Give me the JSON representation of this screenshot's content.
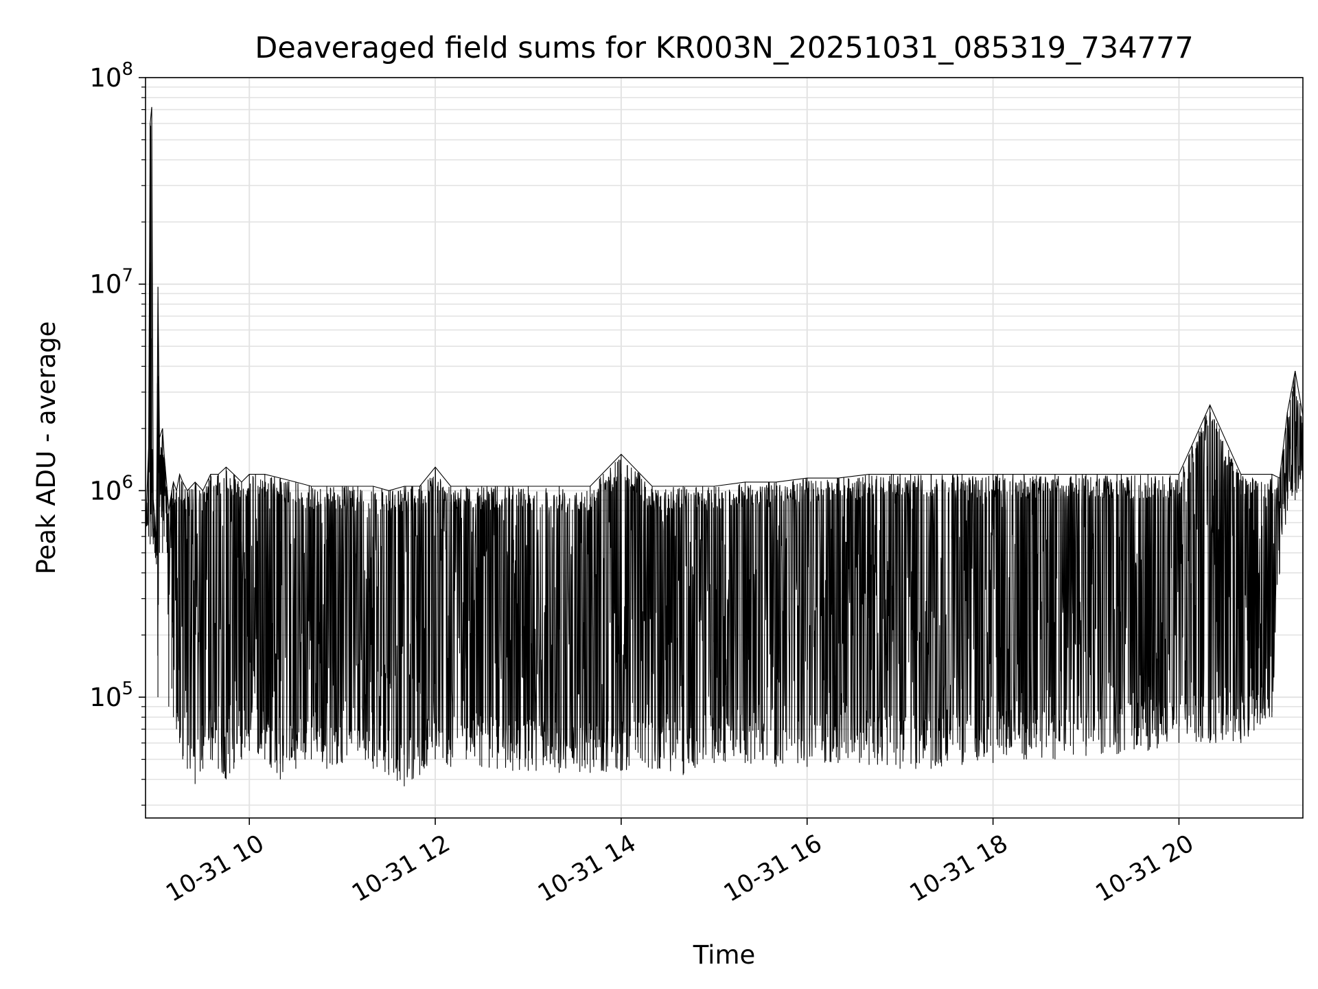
{
  "chart_data": {
    "type": "line",
    "title": "Deaveraged field sums for KR003N_20251031_085319_734777",
    "xlabel": "Time",
    "ylabel": "Peak ADU - average",
    "yscale": "log",
    "ylim": [
      26000,
      100000000
    ],
    "xlim": [
      "2025-10-31 08:53",
      "2025-10-31 21:20"
    ],
    "grid": true,
    "legend": "none",
    "line_color": "#000000",
    "xticks": [
      {
        "value": "2025-10-31 10:00",
        "label": "10-31 10"
      },
      {
        "value": "2025-10-31 12:00",
        "label": "10-31 12"
      },
      {
        "value": "2025-10-31 14:00",
        "label": "10-31 14"
      },
      {
        "value": "2025-10-31 16:00",
        "label": "10-31 16"
      },
      {
        "value": "2025-10-31 18:00",
        "label": "10-31 18"
      },
      {
        "value": "2025-10-31 20:00",
        "label": "10-31 20"
      }
    ],
    "yticks": [
      {
        "value": 100000,
        "base": "10",
        "exp": "5"
      },
      {
        "value": 1000000,
        "base": "10",
        "exp": "6"
      },
      {
        "value": 10000000,
        "base": "10",
        "exp": "7"
      },
      {
        "value": 100000000,
        "base": "10",
        "exp": "8"
      }
    ],
    "series": [
      {
        "x": [
          "2025-10-31 08:53",
          "2025-10-31 08:55",
          "2025-10-31 08:56",
          "2025-10-31 08:57",
          "2025-10-31 08:58",
          "2025-10-31 08:59",
          "2025-10-31 09:00",
          "2025-10-31 09:01",
          "2025-10-31 09:02",
          "2025-10-31 09:04",
          "2025-10-31 09:05",
          "2025-10-31 09:07",
          "2025-10-31 09:08",
          "2025-10-31 09:09",
          "2025-10-31 09:10",
          "2025-10-31 09:11",
          "2025-10-31 09:13",
          "2025-10-31 09:15",
          "2025-10-31 09:17",
          "2025-10-31 09:20",
          "2025-10-31 09:25",
          "2025-10-31 09:30",
          "2025-10-31 09:35",
          "2025-10-31 09:40",
          "2025-10-31 09:45",
          "2025-10-31 09:50",
          "2025-10-31 09:55",
          "2025-10-31 10:00",
          "2025-10-31 10:10",
          "2025-10-31 10:20",
          "2025-10-31 10:30",
          "2025-10-31 10:40",
          "2025-10-31 10:50",
          "2025-10-31 11:00",
          "2025-10-31 11:10",
          "2025-10-31 11:20",
          "2025-10-31 11:30",
          "2025-10-31 11:40",
          "2025-10-31 11:45",
          "2025-10-31 11:50",
          "2025-10-31 12:00",
          "2025-10-31 12:10",
          "2025-10-31 12:20",
          "2025-10-31 12:30",
          "2025-10-31 12:40",
          "2025-10-31 12:50",
          "2025-10-31 13:00",
          "2025-10-31 13:20",
          "2025-10-31 13:40",
          "2025-10-31 14:00",
          "2025-10-31 14:20",
          "2025-10-31 14:40",
          "2025-10-31 15:00",
          "2025-10-31 15:20",
          "2025-10-31 15:40",
          "2025-10-31 16:00",
          "2025-10-31 16:20",
          "2025-10-31 16:40",
          "2025-10-31 17:00",
          "2025-10-31 17:20",
          "2025-10-31 17:40",
          "2025-10-31 18:00",
          "2025-10-31 18:20",
          "2025-10-31 18:40",
          "2025-10-31 19:00",
          "2025-10-31 19:20",
          "2025-10-31 19:40",
          "2025-10-31 20:00",
          "2025-10-31 20:20",
          "2025-10-31 20:40",
          "2025-10-31 21:00",
          "2025-10-31 21:05",
          "2025-10-31 21:10",
          "2025-10-31 21:15",
          "2025-10-31 21:20"
        ],
        "peak": [
          650000,
          1600000,
          60000000,
          72000000,
          900000,
          750000,
          550000,
          9700000,
          1800000,
          2000000,
          1500000,
          1000000,
          800000,
          900000,
          1000000,
          1100000,
          1000000,
          1200000,
          1100000,
          1000000,
          1100000,
          1000000,
          1200000,
          1200000,
          1300000,
          1200000,
          1100000,
          1200000,
          1200000,
          1150000,
          1100000,
          1050000,
          1050000,
          1050000,
          1050000,
          1050000,
          1000000,
          1050000,
          1050000,
          1050000,
          1300000,
          1050000,
          1050000,
          1050000,
          1050000,
          1050000,
          1050000,
          1050000,
          1050000,
          1500000,
          1050000,
          1050000,
          1050000,
          1100000,
          1100000,
          1150000,
          1150000,
          1200000,
          1200000,
          1200000,
          1200000,
          1200000,
          1200000,
          1200000,
          1200000,
          1200000,
          1200000,
          1200000,
          2600000,
          1200000,
          1200000,
          1150000,
          2400000,
          3800000,
          2300000
        ],
        "low": [
          600000,
          600000,
          550000,
          600000,
          550000,
          500000,
          440000,
          100000,
          500000,
          500000,
          600000,
          500000,
          90000,
          800000,
          110000,
          80000,
          70000,
          60000,
          50000,
          45000,
          38000,
          45000,
          50000,
          45000,
          40000,
          45000,
          50000,
          55000,
          50000,
          40000,
          45000,
          50000,
          45000,
          48000,
          55000,
          45000,
          42000,
          37000,
          40000,
          42000,
          50000,
          46000,
          50000,
          46000,
          45000,
          44000,
          44000,
          43000,
          43000,
          44000,
          45000,
          42000,
          48000,
          48000,
          46000,
          46000,
          48000,
          47000,
          45000,
          45000,
          47000,
          48000,
          50000,
          50000,
          52000,
          53000,
          55000,
          60000,
          60000,
          60000,
          80000,
          400000,
          800000,
          900000,
          1100000
        ]
      }
    ]
  }
}
